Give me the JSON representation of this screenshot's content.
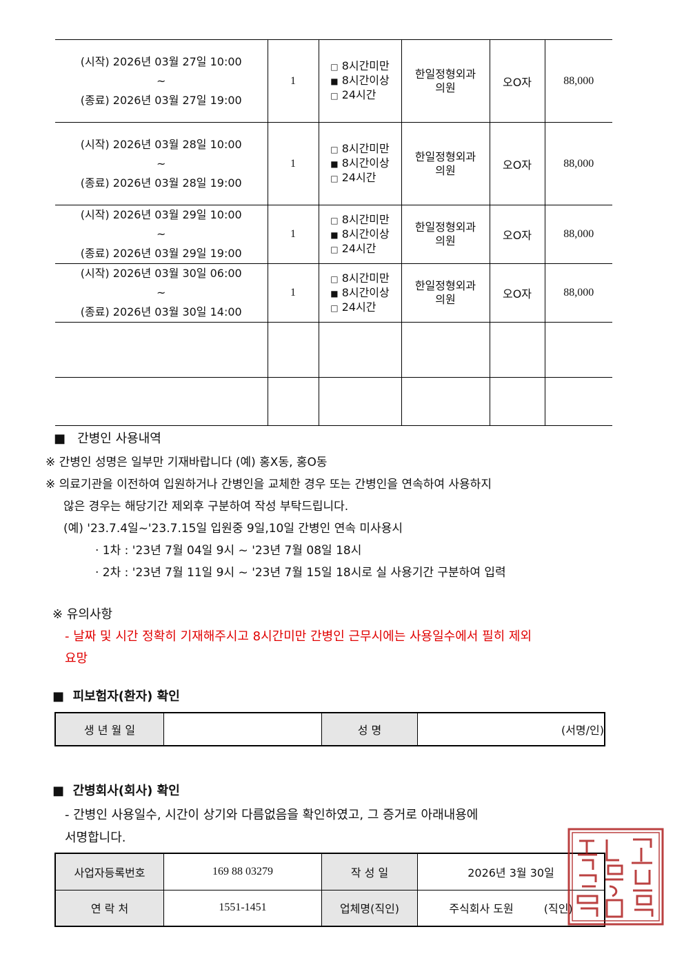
{
  "usage_rows": [
    {
      "start": "(시작) 2026년 03월 27일  10:00",
      "tilde": "~",
      "end": "(종료) 2026년 03월 27일  19:00",
      "count": "1",
      "options": [
        {
          "mark": "□",
          "label": "8시간미만"
        },
        {
          "mark": "■",
          "label": "8시간이상"
        },
        {
          "mark": "□",
          "label": "24시간"
        }
      ],
      "hospital": "한일정형외과\n의원",
      "caregiver": "오O자",
      "amount": "88,000"
    },
    {
      "start": "(시작) 2026년 03월 28일  10:00",
      "tilde": "~",
      "end": "(종료) 2026년 03월 28일  19:00",
      "count": "1",
      "options": [
        {
          "mark": "□",
          "label": "8시간미만"
        },
        {
          "mark": "■",
          "label": "8시간이상"
        },
        {
          "mark": "□",
          "label": "24시간"
        }
      ],
      "hospital": "한일정형외과\n의원",
      "caregiver": "오O자",
      "amount": "88,000"
    },
    {
      "start": "(시작) 2026년 03월 29일  10:00",
      "tilde": "~",
      "end": "(종료) 2026년 03월 29일  19:00",
      "count": "1",
      "options": [
        {
          "mark": "□",
          "label": "8시간미만"
        },
        {
          "mark": "■",
          "label": "8시간이상"
        },
        {
          "mark": "□",
          "label": "24시간"
        }
      ],
      "hospital": "한일정형외과\n의원",
      "caregiver": "오O자",
      "amount": "88,000"
    },
    {
      "start": "(시작) 2026년 03월 30일  06:00",
      "tilde": "~",
      "end": "(종료) 2026년 03월 30일  14:00",
      "count": "1",
      "options": [
        {
          "mark": "□",
          "label": "8시간미만"
        },
        {
          "mark": "■",
          "label": "8시간이상"
        },
        {
          "mark": "□",
          "label": "24시간"
        }
      ],
      "hospital": "한일정형외과\n의원",
      "caregiver": "오O자",
      "amount": "88,000"
    }
  ],
  "section1": {
    "bullet": "■",
    "title": "간병인  사용내역",
    "note1": "※ 간병인 성명은 일부만 기재바랍니다 (예) 홍X동, 홍O동",
    "note2a": "※ 의료기관을 이전하여 입원하거나 간병인을 교체한 경우 또는 간병인을 연속하여 사용하지",
    "note2b": "않은 경우는 해당기간 제외후 구분하여 작성 부탁드립니다.",
    "example": "(예) '23.7.4일~'23.7.15일 입원중 9일,10일 간병인 연속 미사용시",
    "ex1": "· 1차 : '23년 7월 04일 9시 ~ '23년 7월 08일 18시",
    "ex2": "· 2차 : '23년 7월 11일 9시 ~ '23년 7월 15일 18시로 실 사용기간 구분하여 입력"
  },
  "caution": {
    "title": "※  유의사항",
    "line1": "- 날짜 및 시간 정확히 기재해주시고 8시간미만 간병인 근무시에는 사용일수에서 필히 제외",
    "line2": "요망",
    "color": "#e00000"
  },
  "patient": {
    "bullet": "■",
    "title": "피보험자(환자) 확인",
    "birth_label": "생 년 월 일",
    "birth_value": "",
    "name_label": "성 명",
    "sign": "(서명/인)"
  },
  "company": {
    "bullet": "■",
    "title": "간병회사(회사) 확인",
    "desc1": "- 간병인 사용일수, 시간이 상기와 다름없음을 확인하였고, 그 증거로 아래내용에",
    "desc2": "서명합니다.",
    "reg_label": "사업자등록번호",
    "reg_value": "169 88 03279",
    "date_label": "작 성 일",
    "date_value": "2026년  3월  30일",
    "contact_label": "연 락 처",
    "contact_value": "1551-1451",
    "firm_label": "업체명(직인)",
    "firm_value": "주식회사  도원",
    "seal_label": "(직인)",
    "stamp_text": "주식회사도원대표이사인",
    "stamp_color": "#b02020"
  }
}
